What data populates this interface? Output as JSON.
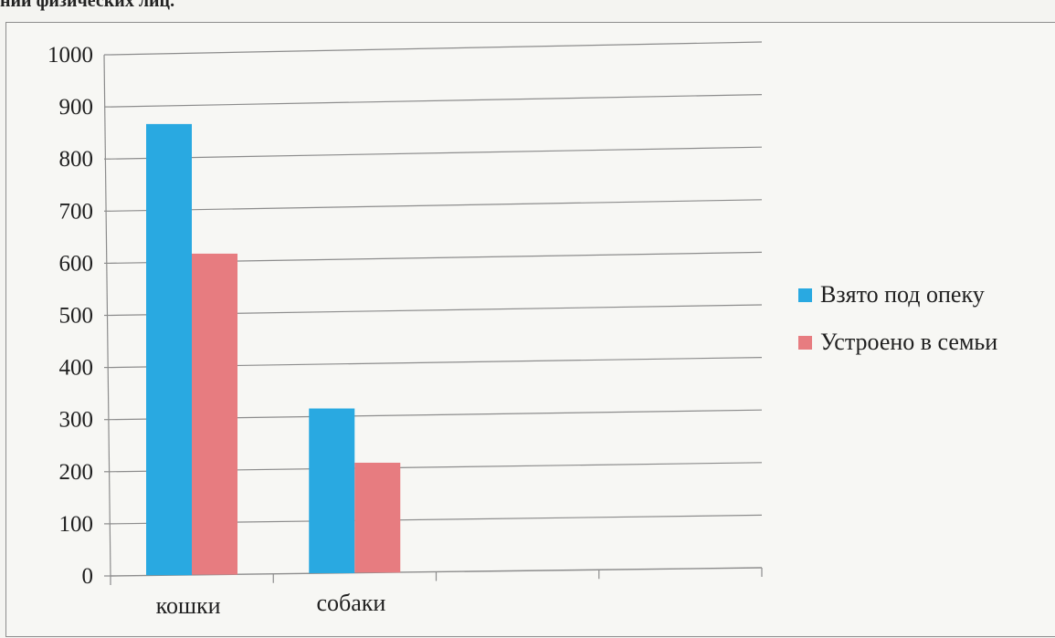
{
  "caption": "ний физических лиц.",
  "colors": {
    "series_1": "#29a9e1",
    "series_2": "#e77c80",
    "grid": "#8c8c8c"
  },
  "chart_data": {
    "type": "bar",
    "categories": [
      "кошки",
      "собаки",
      "",
      ""
    ],
    "series": [
      {
        "name": "Взято под опеку",
        "values": [
          865,
          315,
          null,
          null
        ]
      },
      {
        "name": "Устроено в семьи",
        "values": [
          615,
          210,
          null,
          null
        ]
      }
    ],
    "title": "",
    "xlabel": "",
    "ylabel": "",
    "ylim": [
      0,
      1000
    ],
    "yticks": [
      0,
      100,
      200,
      300,
      400,
      500,
      600,
      700,
      800,
      900,
      1000
    ],
    "grid": true,
    "legend_position": "right"
  }
}
